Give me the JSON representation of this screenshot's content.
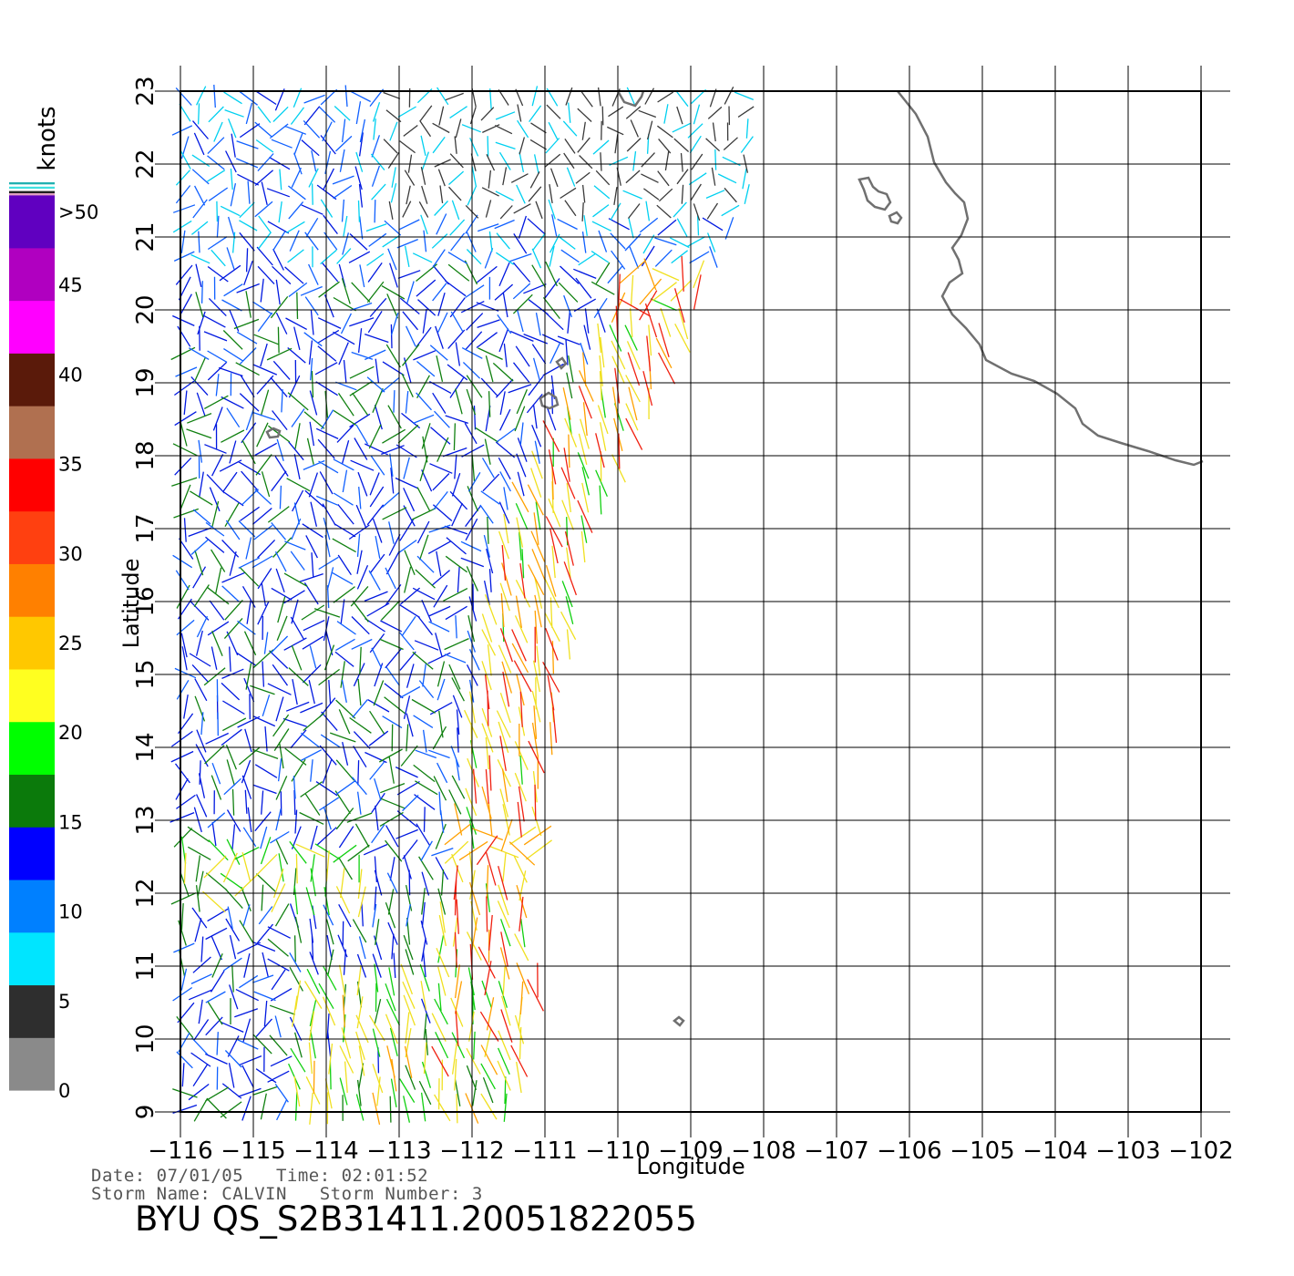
{
  "map": {
    "xlabel": "Longitude",
    "ylabel": "Latitude",
    "lon_range": [
      -116,
      -102
    ],
    "lat_range": [
      9,
      23
    ],
    "lon_ticks": [
      "−116",
      "−115",
      "−114",
      "−113",
      "−112",
      "−111",
      "−110",
      "−109",
      "−108",
      "−107",
      "−106",
      "−105",
      "−104",
      "−103",
      "−102"
    ],
    "lat_ticks": [
      "9",
      "10",
      "11",
      "12",
      "13",
      "14",
      "15",
      "16",
      "17",
      "18",
      "19",
      "20",
      "21",
      "22",
      "23"
    ],
    "grid": true,
    "coast_color": "#707070"
  },
  "colorbar": {
    "unit": "knots",
    "labels": [
      "0",
      "5",
      "10",
      "15",
      "20",
      "25",
      "30",
      "35",
      "40",
      "45",
      ">50"
    ],
    "colors": [
      "#8a8a8a",
      "#2e2e2e",
      "#00e5ff",
      "#0080ff",
      "#0000ff",
      "#0b7a0b",
      "#00ff00",
      "#ffff20",
      "#ffc800",
      "#ff8000",
      "#ff4010",
      "#ff0000",
      "#b07050",
      "#5a1a0a",
      "#ff00ff",
      "#b000c0",
      "#6000c0"
    ]
  },
  "footer": {
    "date_line": "Date: 07/01/05   Time: 02:01:52",
    "storm_line": "Storm Name: CALVIN   Storm Number: 3",
    "product_id": "BYU QS_S2B31411.20051822055"
  }
}
